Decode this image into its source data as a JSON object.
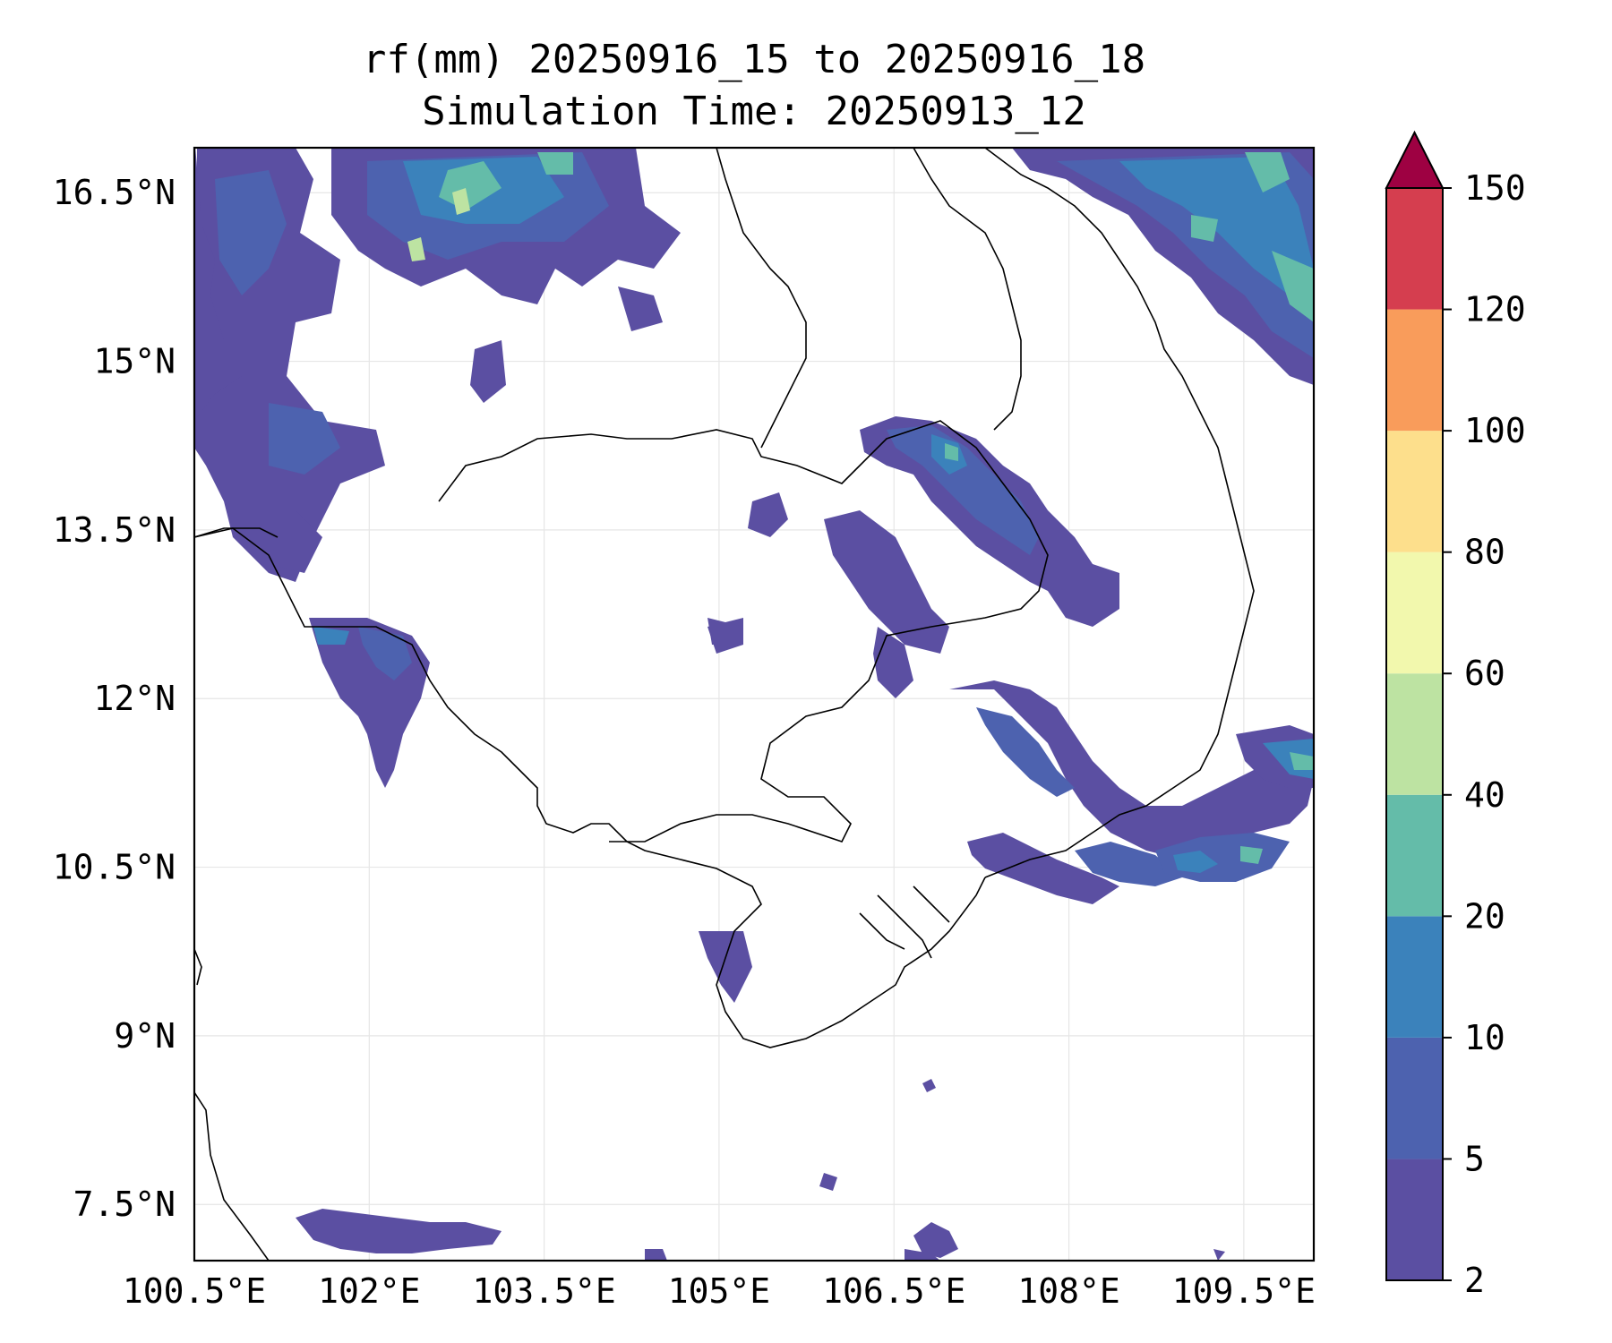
{
  "title": {
    "line1": "rf(mm) 20250916_15 to 20250916_18",
    "line2": "Simulation Time: 20250913_12"
  },
  "map": {
    "lon_range": [
      100.5,
      110.1
    ],
    "lat_range": [
      7.0,
      16.9
    ],
    "lon_ticks": [
      {
        "value": 100.5,
        "label": "100.5°E"
      },
      {
        "value": 102.0,
        "label": "102°E"
      },
      {
        "value": 103.5,
        "label": "103.5°E"
      },
      {
        "value": 105.0,
        "label": "105°E"
      },
      {
        "value": 106.5,
        "label": "106.5°E"
      },
      {
        "value": 108.0,
        "label": "108°E"
      },
      {
        "value": 109.5,
        "label": "109.5°E"
      }
    ],
    "lat_ticks": [
      {
        "value": 16.5,
        "label": "16.5°N"
      },
      {
        "value": 15.0,
        "label": "15°N"
      },
      {
        "value": 13.5,
        "label": "13.5°N"
      },
      {
        "value": 12.0,
        "label": "12°N"
      },
      {
        "value": 10.5,
        "label": "10.5°N"
      },
      {
        "value": 9.0,
        "label": "9°N"
      },
      {
        "value": 7.5,
        "label": "7.5°N"
      }
    ],
    "gridlines": true
  },
  "colorbar": {
    "levels": [
      {
        "value": 2,
        "label": "2",
        "color": "#5b4fa2"
      },
      {
        "value": 5,
        "label": "5",
        "color": "#4d62af"
      },
      {
        "value": 10,
        "label": "10",
        "color": "#3b82bb"
      },
      {
        "value": 20,
        "label": "20",
        "color": "#64bca9"
      },
      {
        "value": 40,
        "label": "40",
        "color": "#bde3a2"
      },
      {
        "value": 60,
        "label": "60",
        "color": "#f2f8ad"
      },
      {
        "value": 80,
        "label": "80",
        "color": "#fddf8c"
      },
      {
        "value": 100,
        "label": "100",
        "color": "#f99c5b"
      },
      {
        "value": 120,
        "label": "120",
        "color": "#d53e4f"
      },
      {
        "value": 150,
        "label": "150",
        "color": "#9e0142"
      }
    ],
    "extend": "max"
  }
}
